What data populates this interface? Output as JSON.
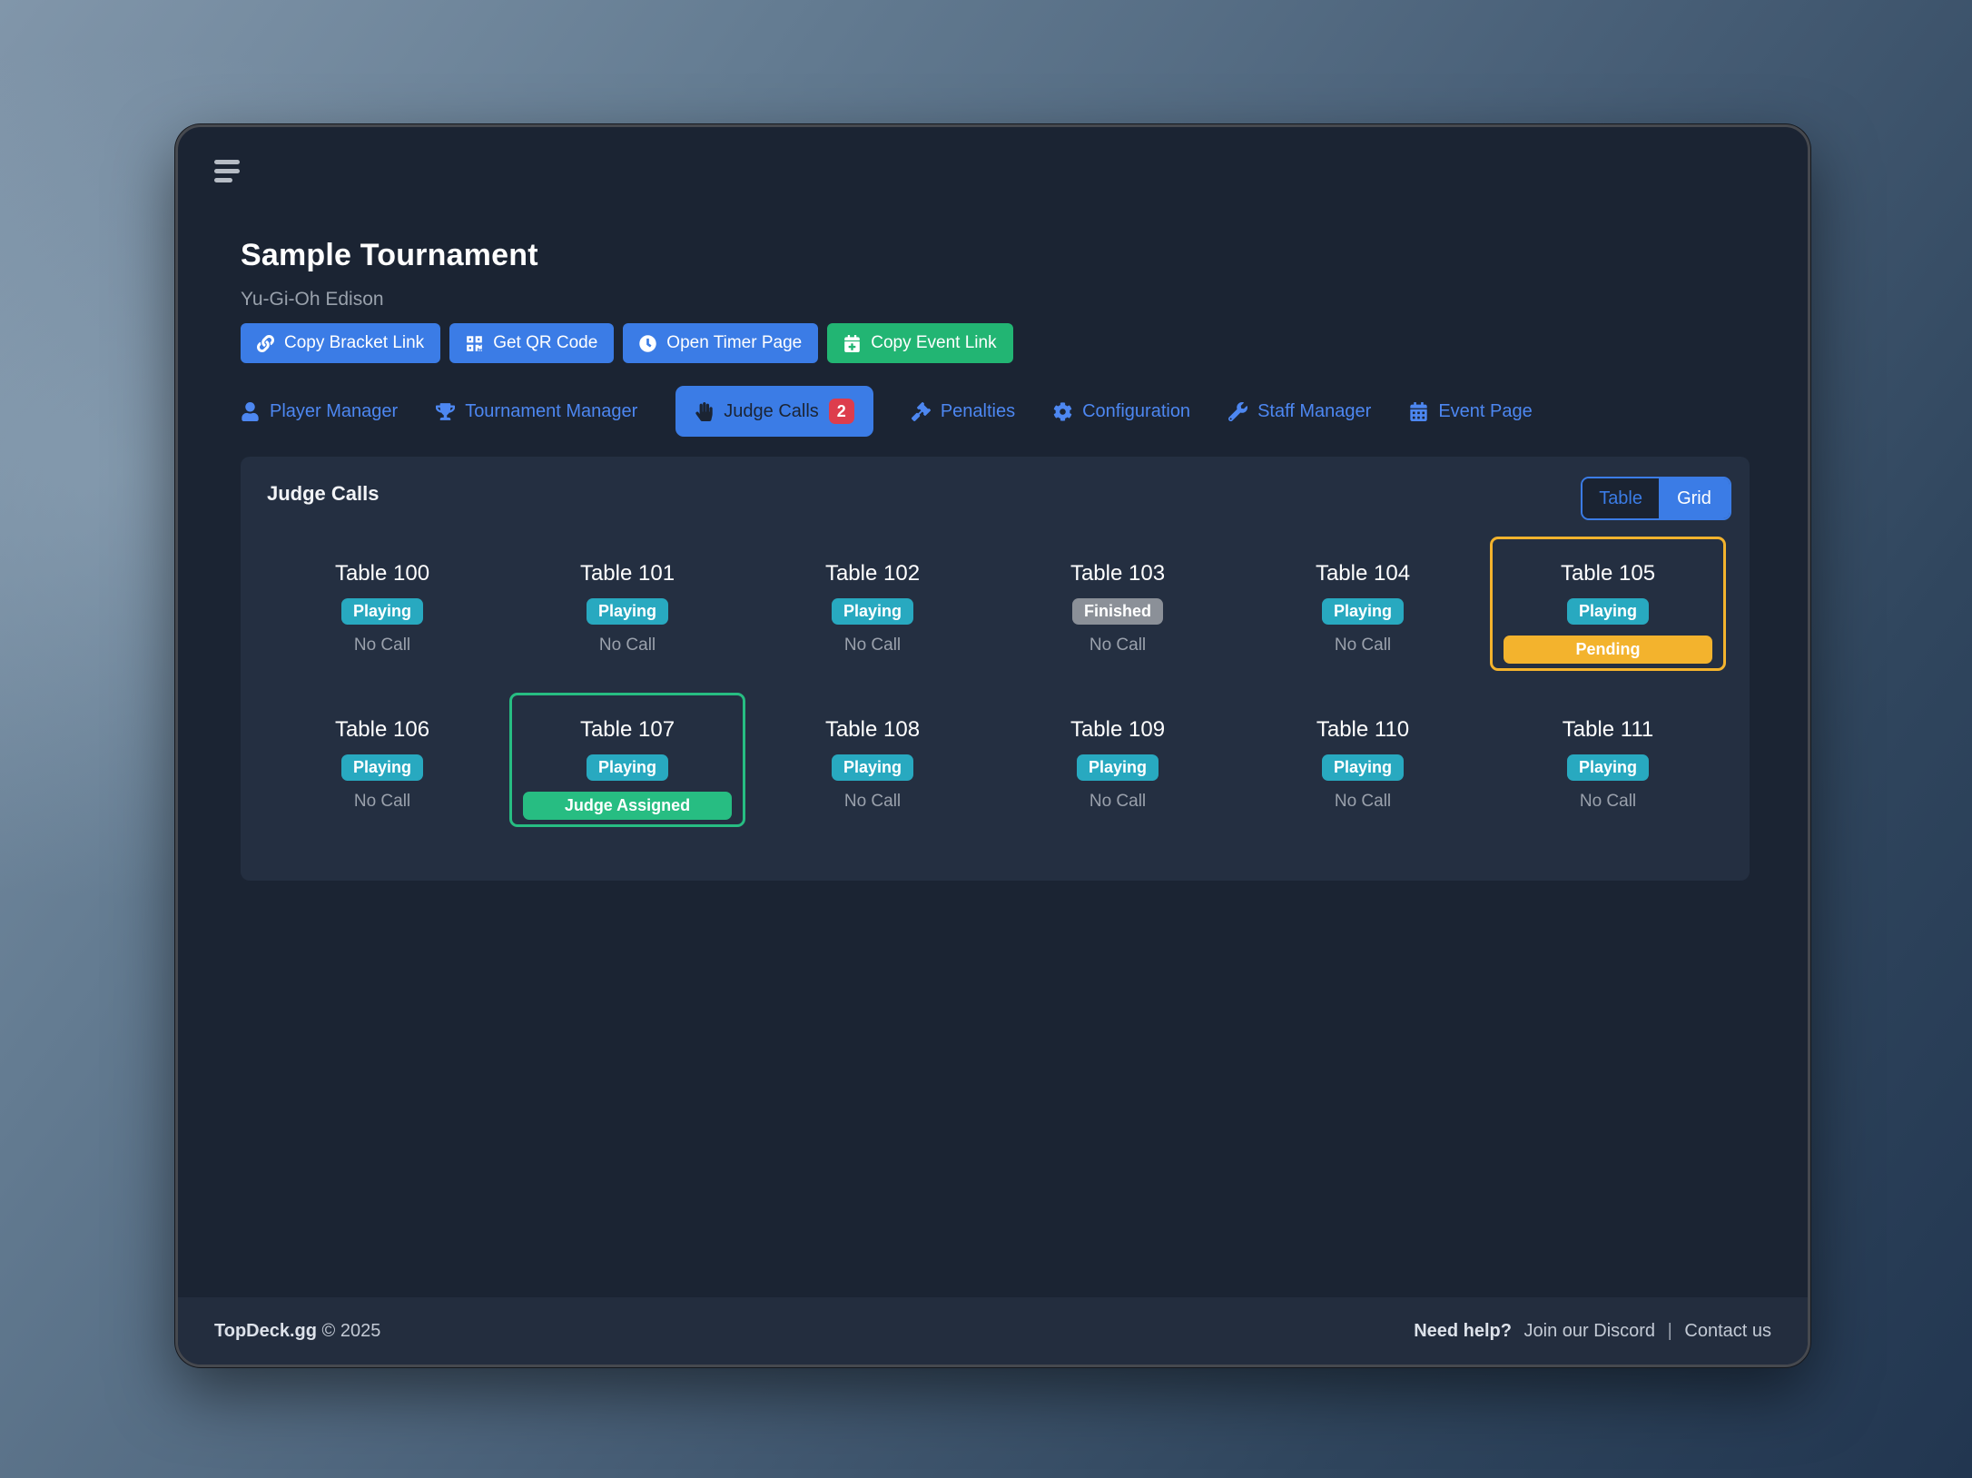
{
  "header": {
    "title": "Sample Tournament",
    "subtitle": "Yu-Gi-Oh Edison"
  },
  "actions": [
    {
      "label": "Copy Bracket Link",
      "icon": "link-icon",
      "style": "blue"
    },
    {
      "label": "Get QR Code",
      "icon": "qr-code-icon",
      "style": "blue"
    },
    {
      "label": "Open Timer Page",
      "icon": "clock-icon",
      "style": "blue"
    },
    {
      "label": "Copy Event Link",
      "icon": "calendar-plus-icon",
      "style": "green"
    }
  ],
  "tabs": [
    {
      "label": "Player Manager",
      "icon": "person-icon",
      "active": false
    },
    {
      "label": "Tournament Manager",
      "icon": "trophy-icon",
      "active": false
    },
    {
      "label": "Judge Calls",
      "icon": "hand-icon",
      "active": true,
      "badge": "2"
    },
    {
      "label": "Penalties",
      "icon": "gavel-icon",
      "active": false
    },
    {
      "label": "Configuration",
      "icon": "gear-icon",
      "active": false
    },
    {
      "label": "Staff Manager",
      "icon": "wrench-icon",
      "active": false
    },
    {
      "label": "Event Page",
      "icon": "calendar-icon",
      "active": false
    }
  ],
  "judge_calls": {
    "title": "Judge Calls",
    "view_options": [
      {
        "label": "Table",
        "selected": false
      },
      {
        "label": "Grid",
        "selected": true
      }
    ],
    "tables": [
      {
        "name": "Table 100",
        "status": "Playing",
        "call": "No Call",
        "highlight": null
      },
      {
        "name": "Table 101",
        "status": "Playing",
        "call": "No Call",
        "highlight": null
      },
      {
        "name": "Table 102",
        "status": "Playing",
        "call": "No Call",
        "highlight": null
      },
      {
        "name": "Table 103",
        "status": "Finished",
        "call": "No Call",
        "highlight": null
      },
      {
        "name": "Table 104",
        "status": "Playing",
        "call": "No Call",
        "highlight": null
      },
      {
        "name": "Table 105",
        "status": "Playing",
        "call": "Pending",
        "highlight": "pending"
      },
      {
        "name": "Table 106",
        "status": "Playing",
        "call": "No Call",
        "highlight": null
      },
      {
        "name": "Table 107",
        "status": "Playing",
        "call": "Judge Assigned",
        "highlight": "assigned"
      },
      {
        "name": "Table 108",
        "status": "Playing",
        "call": "No Call",
        "highlight": null
      },
      {
        "name": "Table 109",
        "status": "Playing",
        "call": "No Call",
        "highlight": null
      },
      {
        "name": "Table 110",
        "status": "Playing",
        "call": "No Call",
        "highlight": null
      },
      {
        "name": "Table 111",
        "status": "Playing",
        "call": "No Call",
        "highlight": null
      }
    ]
  },
  "footer": {
    "brand": "TopDeck.gg",
    "copyright": "© 2025",
    "help_label": "Need help?",
    "discord_link": "Join our Discord",
    "separator": "|",
    "contact_link": "Contact us"
  },
  "colors": {
    "accent_blue": "#3b7ce6",
    "green": "#22b573",
    "teal": "#28a9c0",
    "amber": "#f3b32d",
    "assigned_green": "#27bd82",
    "badge_red": "#dd3d4d",
    "finished_gray": "#8b9098",
    "tab_blue": "#4d87f1",
    "window_bg": "#1b2433",
    "panel_bg": "#242f41",
    "footer_bg": "#232d3e"
  }
}
